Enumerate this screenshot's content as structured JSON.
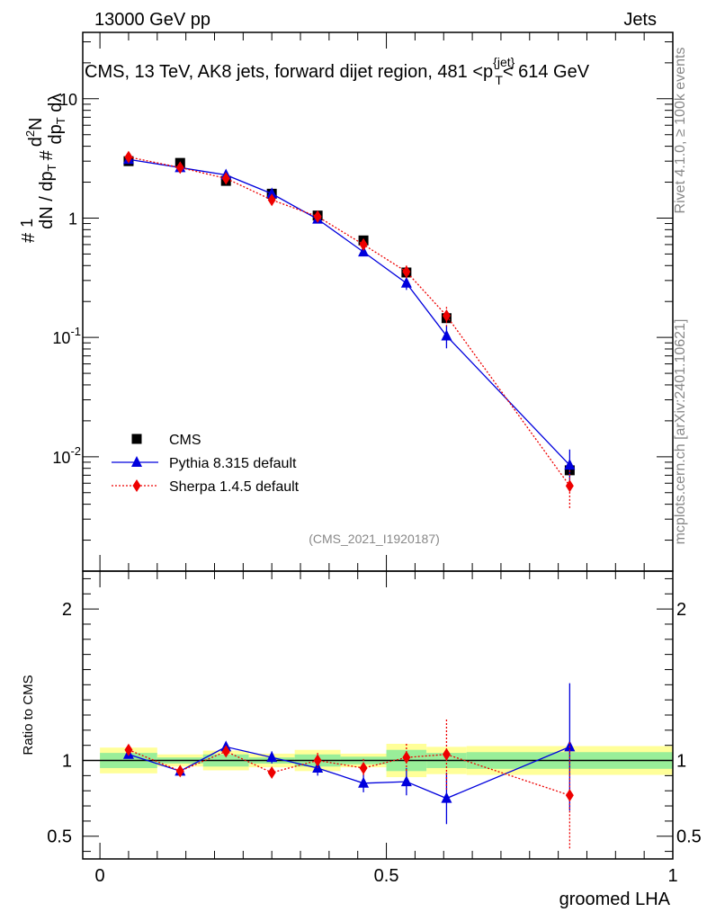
{
  "header": {
    "energy_label": "13000 GeV pp",
    "category_label": "Jets",
    "plot_title": "CMS, 13 TeV, AK8 jets, forward dijet region, 481 <p_T^{jet}< 614 GeV",
    "analysis_id": "(CMS_2021_I1920187)",
    "side_rivet": "Rivet 4.1.0, ≥ 100k events",
    "side_mcplots": "mcplots.cern.ch [arXiv:2401.10621]"
  },
  "chart_data": [
    {
      "type": "scatter",
      "title": "CMS, 13 TeV, AK8 jets, forward dijet region, 481 <p_T^{jet}< 614 GeV",
      "xlabel": "",
      "ylabel": "1/dN/dp_T # d^2N/dp_T dλ #",
      "yscale": "log",
      "xlim": [
        -0.03,
        1.0
      ],
      "ylim": [
        0.0011,
        36
      ],
      "y_ticks": [
        {
          "value": 0.01,
          "label": "10^{-2}"
        },
        {
          "value": 0.1,
          "label": "10^{-1}"
        },
        {
          "value": 1,
          "label": "1"
        },
        {
          "value": 10,
          "label": "10"
        }
      ],
      "legend": {
        "position": "bottom-left",
        "entries": [
          {
            "label": "CMS",
            "color": "#000000",
            "marker": "square"
          },
          {
            "label": "Pythia 8.315 default",
            "color": "#0000dd",
            "marker": "triangle"
          },
          {
            "label": "Sherpa 1.4.5 default",
            "color": "#ee0000",
            "marker": "diamond"
          }
        ]
      },
      "series": [
        {
          "name": "CMS",
          "color": "#000000",
          "x": [
            0.05,
            0.14,
            0.22,
            0.3,
            0.38,
            0.46,
            0.535,
            0.605,
            0.82
          ],
          "y": [
            3.0,
            2.9,
            2.05,
            1.6,
            1.05,
            0.65,
            0.35,
            0.145,
            0.0077
          ]
        },
        {
          "name": "Pythia 8.315 default",
          "color": "#0000dd",
          "x": [
            0.05,
            0.14,
            0.22,
            0.3,
            0.38,
            0.46,
            0.535,
            0.605,
            0.82
          ],
          "y": [
            3.1,
            2.65,
            2.3,
            1.6,
            0.98,
            0.52,
            0.285,
            0.103,
            0.0085
          ],
          "err": [
            0.1,
            0.1,
            0.08,
            0.07,
            0.05,
            0.04,
            0.035,
            0.022,
            0.003
          ]
        },
        {
          "name": "Sherpa 1.4.5 default",
          "color": "#ee0000",
          "x": [
            0.05,
            0.14,
            0.22,
            0.3,
            0.38,
            0.46,
            0.535,
            0.605,
            0.82
          ],
          "y": [
            3.25,
            2.65,
            2.15,
            1.42,
            1.03,
            0.6,
            0.355,
            0.152,
            0.0057
          ],
          "err": [
            0.1,
            0.08,
            0.07,
            0.06,
            0.05,
            0.04,
            0.045,
            0.028,
            0.002
          ]
        }
      ]
    },
    {
      "type": "scatter",
      "title": "",
      "xlabel": "groomed LHA",
      "ylabel": "Ratio to CMS",
      "xlim": [
        -0.03,
        1.0
      ],
      "ylim": [
        0.35,
        2.25
      ],
      "x_ticks": [
        0,
        0.5,
        1
      ],
      "x_tick_labels": [
        "0",
        "0.5",
        "1"
      ],
      "y_ticks": [
        0.5,
        1,
        2
      ],
      "y_tick_labels": [
        "0.5",
        "1",
        "2"
      ],
      "reference_line": 1,
      "bands": [
        {
          "x0": 0.0,
          "x1": 0.1,
          "inner": 0.05,
          "outer": 0.085
        },
        {
          "x0": 0.1,
          "x1": 0.18,
          "inner": 0.02,
          "outer": 0.04
        },
        {
          "x0": 0.18,
          "x1": 0.26,
          "inner": 0.04,
          "outer": 0.065
        },
        {
          "x0": 0.26,
          "x1": 0.34,
          "inner": 0.02,
          "outer": 0.045
        },
        {
          "x0": 0.34,
          "x1": 0.42,
          "inner": 0.04,
          "outer": 0.07
        },
        {
          "x0": 0.42,
          "x1": 0.5,
          "inner": 0.025,
          "outer": 0.045
        },
        {
          "x0": 0.5,
          "x1": 0.57,
          "inner": 0.07,
          "outer": 0.11
        },
        {
          "x0": 0.57,
          "x1": 0.64,
          "inner": 0.05,
          "outer": 0.09
        },
        {
          "x0": 0.64,
          "x1": 1.0,
          "inner": 0.055,
          "outer": 0.095
        }
      ],
      "series": [
        {
          "name": "Pythia 8.315 default",
          "color": "#0000dd",
          "x": [
            0.05,
            0.14,
            0.22,
            0.3,
            0.38,
            0.46,
            0.535,
            0.605,
            0.82
          ],
          "y": [
            1.04,
            0.93,
            1.09,
            1.02,
            0.95,
            0.85,
            0.86,
            0.75,
            1.09
          ],
          "err": [
            0.02,
            0.03,
            0.03,
            0.04,
            0.05,
            0.06,
            0.09,
            0.17,
            0.42
          ]
        },
        {
          "name": "Sherpa 1.4.5 default",
          "color": "#ee0000",
          "x": [
            0.05,
            0.14,
            0.22,
            0.3,
            0.38,
            0.46,
            0.535,
            0.605,
            0.82
          ],
          "y": [
            1.07,
            0.93,
            1.06,
            0.92,
            1.0,
            0.95,
            1.02,
            1.04,
            0.77
          ],
          "err": [
            0.02,
            0.03,
            0.03,
            0.03,
            0.05,
            0.06,
            0.09,
            0.23,
            0.35
          ]
        }
      ]
    }
  ]
}
